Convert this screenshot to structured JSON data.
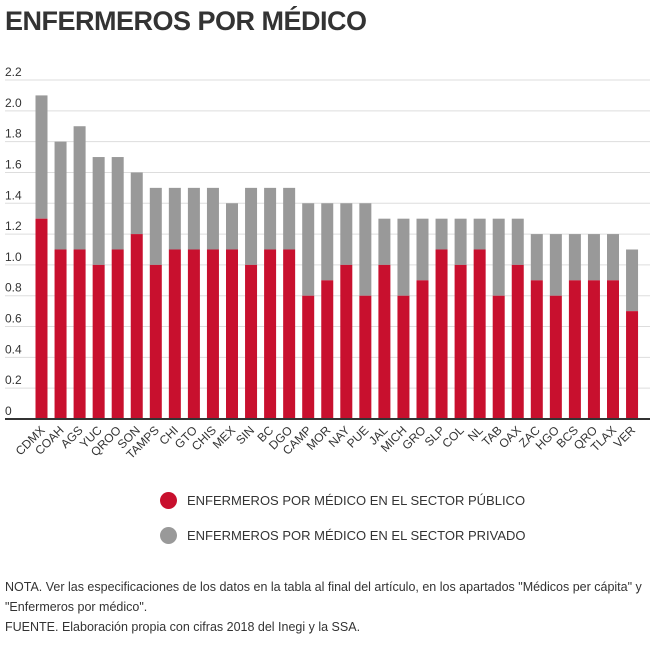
{
  "title": "ENFERMEROS POR MÉDICO",
  "legend": {
    "public": "ENFERMEROS POR MÉDICO EN EL SECTOR PÚBLICO",
    "private": "ENFERMEROS POR MÉDICO EN EL SECTOR PRIVADO"
  },
  "colors": {
    "public": "#c8102e",
    "private": "#999999",
    "grid": "#dddddd",
    "axis": "#333333"
  },
  "notes": {
    "nota": "NOTA. Ver las especificaciones de los datos en la tabla al final del artículo, en los apartados \"Médicos per cápita\" y \"Enfermeros por médico\".",
    "fuente": "FUENTE. Elaboración propia con cifras 2018 del Inegi y la SSA."
  },
  "chart_data": {
    "type": "bar",
    "stacked": true,
    "categories": [
      "CDMX",
      "COAH",
      "AGS",
      "YUC",
      "QROO",
      "SON",
      "TAMPS",
      "CHI",
      "GTO",
      "CHIS",
      "MEX",
      "SIN",
      "BC",
      "DGO",
      "CAMP",
      "MOR",
      "NAY",
      "PUE",
      "JAL",
      "MICH",
      "GRO",
      "SLP",
      "COL",
      "NL",
      "TAB",
      "OAX",
      "ZAC",
      "HGO",
      "BCS",
      "QRO",
      "TLAX",
      "VER"
    ],
    "series": [
      {
        "name": "ENFERMEROS POR MÉDICO EN EL SECTOR PÚBLICO",
        "values": [
          1.3,
          1.1,
          1.1,
          1.0,
          1.1,
          1.2,
          1.0,
          1.1,
          1.1,
          1.1,
          1.1,
          1.0,
          1.1,
          1.1,
          0.8,
          0.9,
          1.0,
          0.8,
          1.0,
          0.8,
          0.9,
          1.1,
          1.0,
          1.1,
          0.8,
          1.0,
          0.9,
          0.8,
          0.9,
          0.9,
          0.9,
          0.7
        ]
      },
      {
        "name": "ENFERMEROS POR MÉDICO EN EL SECTOR PRIVADO",
        "values": [
          0.8,
          0.7,
          0.8,
          0.7,
          0.6,
          0.4,
          0.5,
          0.4,
          0.4,
          0.4,
          0.3,
          0.5,
          0.4,
          0.4,
          0.6,
          0.5,
          0.4,
          0.6,
          0.3,
          0.5,
          0.4,
          0.2,
          0.3,
          0.2,
          0.5,
          0.3,
          0.3,
          0.4,
          0.3,
          0.3,
          0.3,
          0.4
        ]
      }
    ],
    "ylim": [
      0,
      2.2
    ],
    "yticks": [
      "0",
      "0.2",
      "0.4",
      "0.6",
      "0.8",
      "1.0",
      "1.2",
      "1.4",
      "1.6",
      "1.8",
      "2.0",
      "2.2"
    ],
    "grid": true,
    "legend_position": "bottom"
  }
}
